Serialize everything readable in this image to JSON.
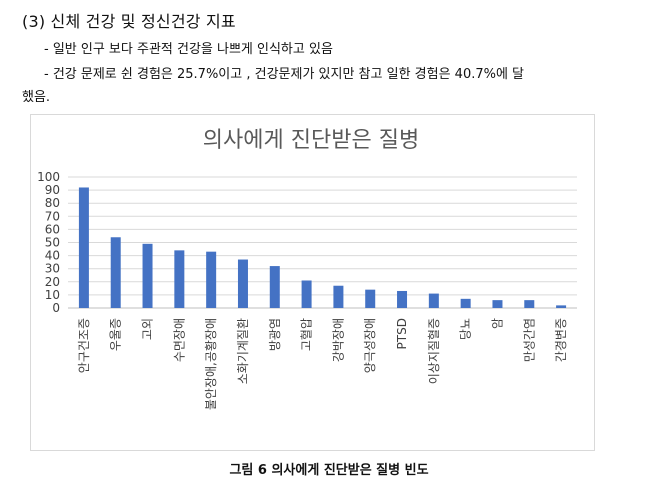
{
  "doc": {
    "heading": "(3) 신체 건강 및 정신건강 지표",
    "bullet1": "- 일반 인구 보다 주관적 건강을 나쁘게 인식하고 있음",
    "bullet2": "- 건강 문제로 쉰 경험은 25.7%이고 , 건강문제가 있지만 참고 일한 경험은 40.7%에 달",
    "bullet2_cont": "했음.",
    "caption": "그림 6 의사에게 진단받은 질병 빈도"
  },
  "chart_data": {
    "type": "bar",
    "title": "의사에게 진단받은 질병",
    "categories": [
      "안구건조증",
      "우울증",
      "고외",
      "수면장애",
      "불안장애,공황장애",
      "소화기계질환",
      "방광염",
      "고혈압",
      "강박장애",
      "양극성장애",
      "PTSD",
      "이상지질혈증",
      "당뇨",
      "암",
      "만성간염",
      "간경변증"
    ],
    "values": [
      92,
      54,
      49,
      44,
      43,
      37,
      32,
      21,
      17,
      14,
      13,
      11,
      7,
      6,
      6,
      2
    ],
    "ylim": [
      0,
      100
    ],
    "yticks": [
      0,
      10,
      20,
      30,
      40,
      50,
      60,
      70,
      80,
      90,
      100
    ],
    "xlabel": "",
    "ylabel": "",
    "grid": true,
    "bar_color": "#4472c4"
  }
}
